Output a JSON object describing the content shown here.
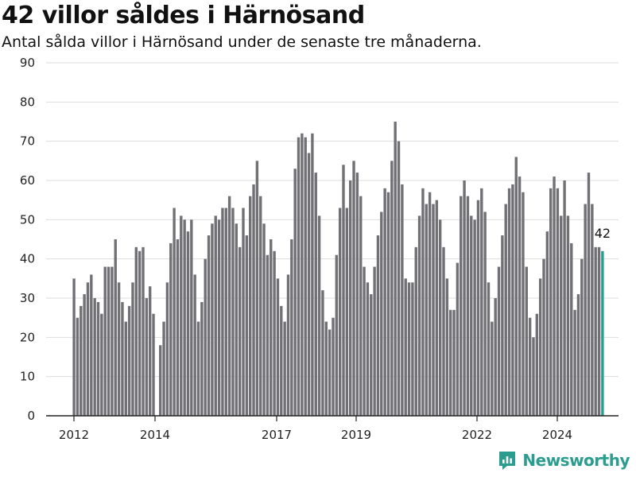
{
  "title": "42 villor såldes i Härnösand",
  "subtitle": "Antal sålda villor i Härnösand under de senaste tre månaderna.",
  "brand": {
    "name": "Newsworthy",
    "color": "#2a9d8f",
    "icon": "newsworthy-logo-icon"
  },
  "chart_data": {
    "type": "bar",
    "title": "42 villor såldes i Härnösand",
    "subtitle": "Antal sålda villor i Härnösand under de senaste tre månaderna.",
    "xlabel": "",
    "ylabel": "",
    "ylim": [
      0,
      90
    ],
    "yticks": [
      0,
      10,
      20,
      30,
      40,
      50,
      60,
      70,
      80,
      90
    ],
    "xticks": [
      "2012",
      "2014",
      "2017",
      "2019",
      "2022",
      "2024"
    ],
    "grid": true,
    "bar_color": "#717075",
    "highlight_color": "#2a9d8f",
    "highlight_label": "42",
    "values": [
      35,
      25,
      28,
      31,
      34,
      36,
      30,
      29,
      26,
      38,
      38,
      38,
      45,
      34,
      29,
      24,
      28,
      34,
      43,
      42,
      43,
      30,
      33,
      26,
      0,
      18,
      24,
      34,
      44,
      53,
      45,
      51,
      50,
      47,
      50,
      36,
      24,
      29,
      40,
      46,
      49,
      51,
      50,
      53,
      53,
      56,
      53,
      49,
      43,
      53,
      46,
      56,
      59,
      65,
      56,
      49,
      41,
      45,
      42,
      35,
      28,
      24,
      36,
      45,
      63,
      71,
      72,
      71,
      67,
      72,
      62,
      51,
      32,
      24,
      22,
      25,
      41,
      53,
      64,
      53,
      60,
      65,
      62,
      56,
      38,
      34,
      31,
      38,
      46,
      52,
      58,
      57,
      65,
      75,
      70,
      59,
      35,
      34,
      34,
      43,
      51,
      58,
      54,
      57,
      54,
      55,
      50,
      43,
      35,
      27,
      27,
      39,
      56,
      60,
      56,
      51,
      50,
      55,
      58,
      52,
      34,
      24,
      30,
      38,
      46,
      54,
      58,
      59,
      66,
      61,
      57,
      38,
      25,
      20,
      26,
      35,
      40,
      47,
      58,
      61,
      58,
      51,
      60,
      51,
      44,
      27,
      31,
      40,
      54,
      62,
      54,
      43,
      43,
      42
    ]
  }
}
